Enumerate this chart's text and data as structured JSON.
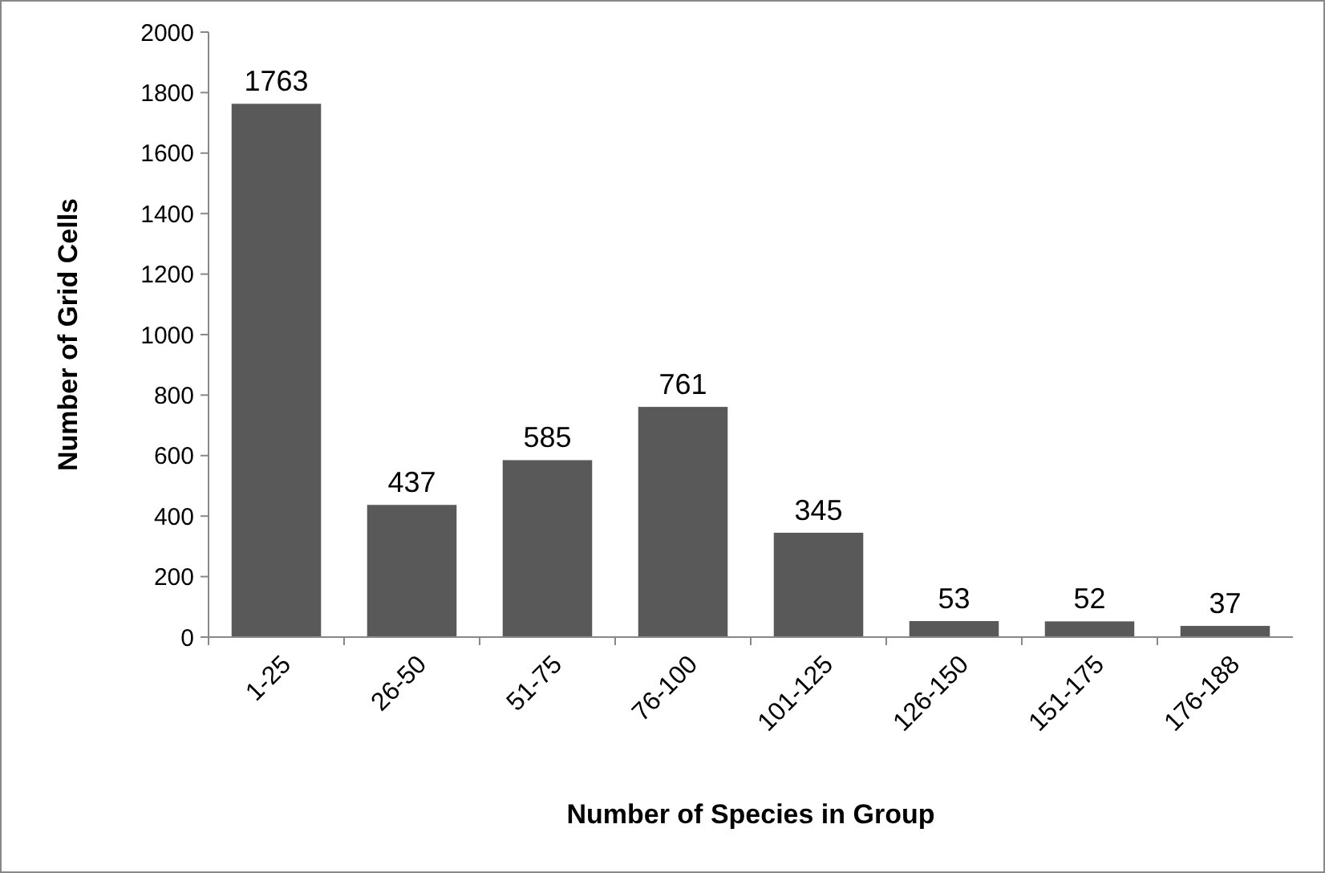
{
  "chart_data": {
    "type": "bar",
    "xlabel": "Number of Species in Group",
    "ylabel": "Number of Grid Cells",
    "categories": [
      "1-25",
      "26-50",
      "51-75",
      "76-100",
      "101-125",
      "126-150",
      "151-175",
      "176-188"
    ],
    "values": [
      1763,
      437,
      585,
      761,
      345,
      53,
      52,
      37
    ],
    "color": "#595959",
    "ylim": [
      0,
      2000
    ],
    "yticks": [
      0,
      200,
      400,
      600,
      800,
      1000,
      1200,
      1400,
      1600,
      1800,
      2000
    ],
    "data_labels": true
  }
}
